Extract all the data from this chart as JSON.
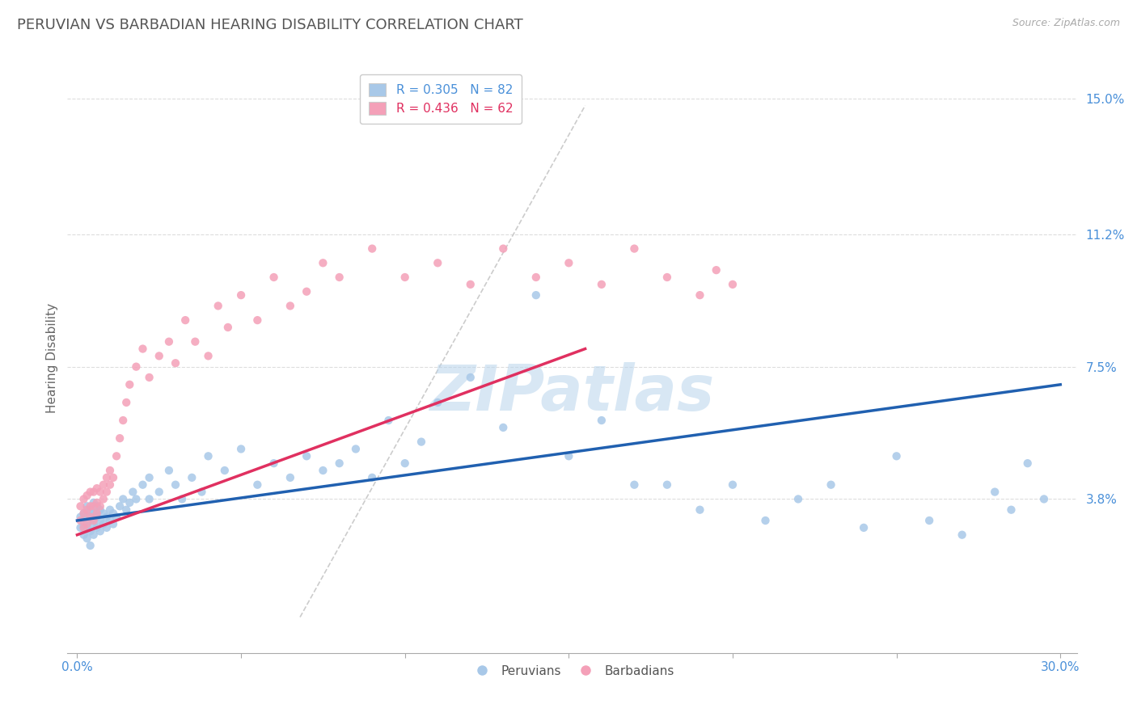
{
  "title": "PERUVIAN VS BARBADIAN HEARING DISABILITY CORRELATION CHART",
  "source": "Source: ZipAtlas.com",
  "ylabel": "Hearing Disability",
  "xlim": [
    0.0,
    0.3
  ],
  "ylim": [
    0.0,
    0.16
  ],
  "yticks": [
    0.038,
    0.075,
    0.112,
    0.15
  ],
  "ytick_labels": [
    "3.8%",
    "7.5%",
    "11.2%",
    "15.0%"
  ],
  "peruvian_R": 0.305,
  "peruvian_N": 82,
  "barbadian_R": 0.436,
  "barbadian_N": 62,
  "peruvian_color": "#a8c8e8",
  "barbadian_color": "#f4a0b8",
  "peruvian_line_color": "#2060b0",
  "barbadian_line_color": "#e03060",
  "grid_color": "#dddddd",
  "title_color": "#555555",
  "axis_label_color": "#4a90d9",
  "peruvian_x": [
    0.001,
    0.001,
    0.002,
    0.002,
    0.002,
    0.003,
    0.003,
    0.003,
    0.003,
    0.004,
    0.004,
    0.004,
    0.004,
    0.005,
    0.005,
    0.005,
    0.005,
    0.006,
    0.006,
    0.006,
    0.007,
    0.007,
    0.007,
    0.008,
    0.008,
    0.009,
    0.009,
    0.01,
    0.01,
    0.011,
    0.011,
    0.012,
    0.013,
    0.014,
    0.015,
    0.016,
    0.017,
    0.018,
    0.02,
    0.022,
    0.022,
    0.025,
    0.028,
    0.03,
    0.032,
    0.035,
    0.038,
    0.04,
    0.045,
    0.05,
    0.055,
    0.06,
    0.065,
    0.07,
    0.075,
    0.08,
    0.085,
    0.09,
    0.095,
    0.1,
    0.105,
    0.11,
    0.12,
    0.13,
    0.14,
    0.15,
    0.16,
    0.17,
    0.18,
    0.19,
    0.2,
    0.21,
    0.22,
    0.23,
    0.24,
    0.25,
    0.26,
    0.27,
    0.28,
    0.285,
    0.29,
    0.295
  ],
  "peruvian_y": [
    0.03,
    0.033,
    0.028,
    0.031,
    0.034,
    0.027,
    0.03,
    0.033,
    0.036,
    0.025,
    0.029,
    0.032,
    0.035,
    0.028,
    0.031,
    0.034,
    0.037,
    0.03,
    0.033,
    0.036,
    0.029,
    0.032,
    0.035,
    0.031,
    0.034,
    0.03,
    0.033,
    0.032,
    0.035,
    0.031,
    0.034,
    0.033,
    0.036,
    0.038,
    0.035,
    0.037,
    0.04,
    0.038,
    0.042,
    0.038,
    0.044,
    0.04,
    0.046,
    0.042,
    0.038,
    0.044,
    0.04,
    0.05,
    0.046,
    0.052,
    0.042,
    0.048,
    0.044,
    0.05,
    0.046,
    0.048,
    0.052,
    0.044,
    0.06,
    0.048,
    0.054,
    0.065,
    0.072,
    0.058,
    0.095,
    0.05,
    0.06,
    0.042,
    0.042,
    0.035,
    0.042,
    0.032,
    0.038,
    0.042,
    0.03,
    0.05,
    0.032,
    0.028,
    0.04,
    0.035,
    0.048,
    0.038
  ],
  "barbadian_x": [
    0.001,
    0.001,
    0.002,
    0.002,
    0.002,
    0.003,
    0.003,
    0.003,
    0.004,
    0.004,
    0.004,
    0.005,
    0.005,
    0.005,
    0.006,
    0.006,
    0.006,
    0.007,
    0.007,
    0.008,
    0.008,
    0.009,
    0.009,
    0.01,
    0.01,
    0.011,
    0.012,
    0.013,
    0.014,
    0.015,
    0.016,
    0.018,
    0.02,
    0.022,
    0.025,
    0.028,
    0.03,
    0.033,
    0.036,
    0.04,
    0.043,
    0.046,
    0.05,
    0.055,
    0.06,
    0.065,
    0.07,
    0.075,
    0.08,
    0.09,
    0.1,
    0.11,
    0.12,
    0.13,
    0.14,
    0.15,
    0.16,
    0.17,
    0.18,
    0.19,
    0.195,
    0.2
  ],
  "barbadian_y": [
    0.032,
    0.036,
    0.03,
    0.034,
    0.038,
    0.031,
    0.035,
    0.039,
    0.033,
    0.036,
    0.04,
    0.032,
    0.036,
    0.04,
    0.034,
    0.037,
    0.041,
    0.036,
    0.04,
    0.038,
    0.042,
    0.04,
    0.044,
    0.042,
    0.046,
    0.044,
    0.05,
    0.055,
    0.06,
    0.065,
    0.07,
    0.075,
    0.08,
    0.072,
    0.078,
    0.082,
    0.076,
    0.088,
    0.082,
    0.078,
    0.092,
    0.086,
    0.095,
    0.088,
    0.1,
    0.092,
    0.096,
    0.104,
    0.1,
    0.108,
    0.1,
    0.104,
    0.098,
    0.108,
    0.1,
    0.104,
    0.098,
    0.108,
    0.1,
    0.095,
    0.102,
    0.098
  ],
  "peru_line_x": [
    0.0,
    0.3
  ],
  "peru_line_y": [
    0.032,
    0.07
  ],
  "barb_line_x": [
    0.0,
    0.155
  ],
  "barb_line_y": [
    0.028,
    0.08
  ],
  "diag_line_x": [
    0.068,
    0.155
  ],
  "diag_line_y": [
    0.005,
    0.148
  ]
}
